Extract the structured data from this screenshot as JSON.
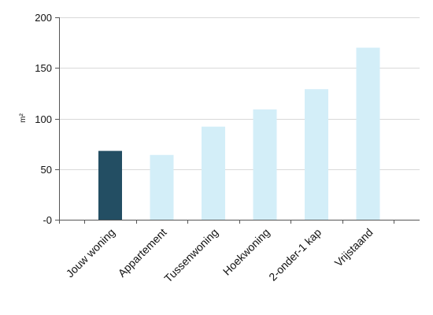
{
  "chart_data": {
    "type": "bar",
    "title": "",
    "xlabel": "",
    "ylabel": "m²",
    "ylim": [
      0,
      200
    ],
    "yticks": [
      {
        "value": 0,
        "label": "-0"
      },
      {
        "value": 50,
        "label": "50"
      },
      {
        "value": 100,
        "label": "100"
      },
      {
        "value": 150,
        "label": "150"
      },
      {
        "value": 200,
        "label": "200"
      }
    ],
    "grid": "horizontal",
    "categories": [
      "Jouw woning",
      "Appartement",
      "Tussenwoning",
      "Hoekwoning",
      "2-onder-1 kap",
      "Vrijstaand"
    ],
    "values": [
      68,
      64,
      92,
      109,
      129,
      170
    ],
    "bar_colors": [
      "#234e63",
      "#d3eef8",
      "#d3eef8",
      "#d3eef8",
      "#d3eef8",
      "#d3eef8"
    ],
    "colors": {
      "axis": "#555555",
      "grid": "#d9d9d9"
    }
  }
}
